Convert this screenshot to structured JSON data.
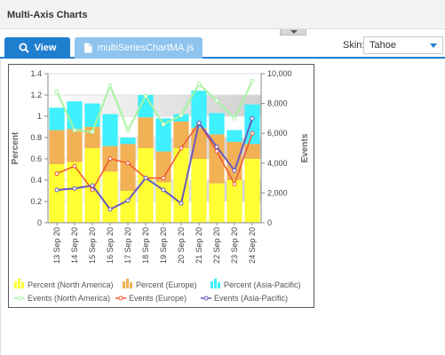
{
  "header": {
    "title": "Multi-Axis Charts"
  },
  "toolbar": {
    "view_label": "View",
    "file_tab_label": "multiSeriesChartMA.js",
    "skin_label": "Skin:",
    "skin_value": "Tahoe"
  },
  "colors": {
    "accent": "#1f7fcf",
    "na_bar": "#ffff33",
    "eu_bar": "#f2b155",
    "ap_bar": "#3ff0ff",
    "na_line": "#a4f5a1",
    "eu_line": "#ee5533",
    "ap_line": "#6a5ac0"
  },
  "chart_data": {
    "type": "bar",
    "categories": [
      "13 Sep 20",
      "14 Sep 20",
      "15 Sep 20",
      "16 Sep 20",
      "17 Sep 20",
      "18 Sep 20",
      "19 Sep 20",
      "20 Sep 20",
      "21 Sep 20",
      "22 Sep 20",
      "23 Sep 20",
      "24 Sep 20"
    ],
    "y_left": {
      "label": "Percent",
      "min": 0,
      "max": 1.4,
      "ticks": [
        "0",
        "0.2",
        "0.4",
        "0.6",
        "0.8",
        "1",
        "1.2",
        "1.4"
      ]
    },
    "y_right": {
      "label": "Events",
      "min": 0,
      "max": 10000,
      "ticks": [
        "0",
        "2,000",
        "4,000",
        "6,000",
        "8,000",
        "10,000"
      ]
    },
    "bar_series": [
      {
        "name": "Percent (North America)",
        "values": [
          0.55,
          0.57,
          0.7,
          0.48,
          0.3,
          0.7,
          0.38,
          0.7,
          0.6,
          0.37,
          0.4,
          0.6
        ]
      },
      {
        "name": "Percent (Europe)",
        "values": [
          0.32,
          0.31,
          0.2,
          0.24,
          0.44,
          0.29,
          0.29,
          0.25,
          0.29,
          0.46,
          0.36,
          0.14
        ]
      },
      {
        "name": "Percent (Asia-Pacific)",
        "values": [
          0.21,
          0.26,
          0.22,
          0.3,
          0.06,
          0.21,
          0.31,
          0.07,
          0.35,
          0.2,
          0.11,
          0.37
        ]
      }
    ],
    "line_series": [
      {
        "name": "Events (North America)",
        "values": [
          8800,
          6200,
          6100,
          9200,
          6200,
          8500,
          6600,
          7200,
          9300,
          8200,
          7000,
          9500
        ]
      },
      {
        "name": "Events (Europe)",
        "values": [
          3300,
          3800,
          2200,
          4300,
          4000,
          3000,
          3000,
          5000,
          6700,
          4800,
          2600,
          6000
        ]
      },
      {
        "name": "Events (Asia-Pacific)",
        "values": [
          2200,
          2300,
          2500,
          900,
          1500,
          3000,
          2200,
          1300,
          6700,
          5100,
          3500,
          7000
        ]
      }
    ],
    "legend_position": "bottom",
    "grid": true
  }
}
